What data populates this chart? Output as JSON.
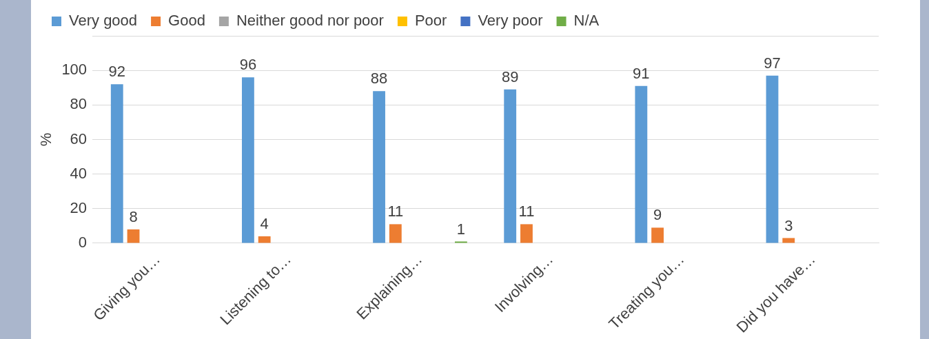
{
  "chart_data": {
    "type": "bar",
    "ylabel": "%",
    "categories": [
      "Giving you…",
      "Listening to…",
      "Explaining…",
      "Involving…",
      "Treating you…",
      "Did you have…"
    ],
    "series": [
      {
        "name": "Very good",
        "color": "#5b9bd5",
        "values": [
          92,
          96,
          88,
          89,
          91,
          97
        ]
      },
      {
        "name": "Good",
        "color": "#ed7d31",
        "values": [
          8,
          4,
          11,
          11,
          9,
          3
        ]
      },
      {
        "name": "Neither good nor poor",
        "color": "#a5a5a5",
        "values": [
          null,
          null,
          null,
          null,
          null,
          null
        ]
      },
      {
        "name": "Poor",
        "color": "#ffc000",
        "values": [
          null,
          null,
          null,
          null,
          null,
          null
        ]
      },
      {
        "name": "Very poor",
        "color": "#4472c4",
        "values": [
          null,
          null,
          null,
          null,
          null,
          null
        ]
      },
      {
        "name": "N/A",
        "color": "#70ad47",
        "values": [
          null,
          null,
          1,
          null,
          null,
          null
        ]
      }
    ],
    "ylim": [
      0,
      120
    ],
    "yticks": [
      0,
      20,
      40,
      60,
      80,
      100,
      {
        "value": 120,
        "label": null
      }
    ],
    "grid": "y",
    "legend": "top",
    "data_labels": true
  }
}
